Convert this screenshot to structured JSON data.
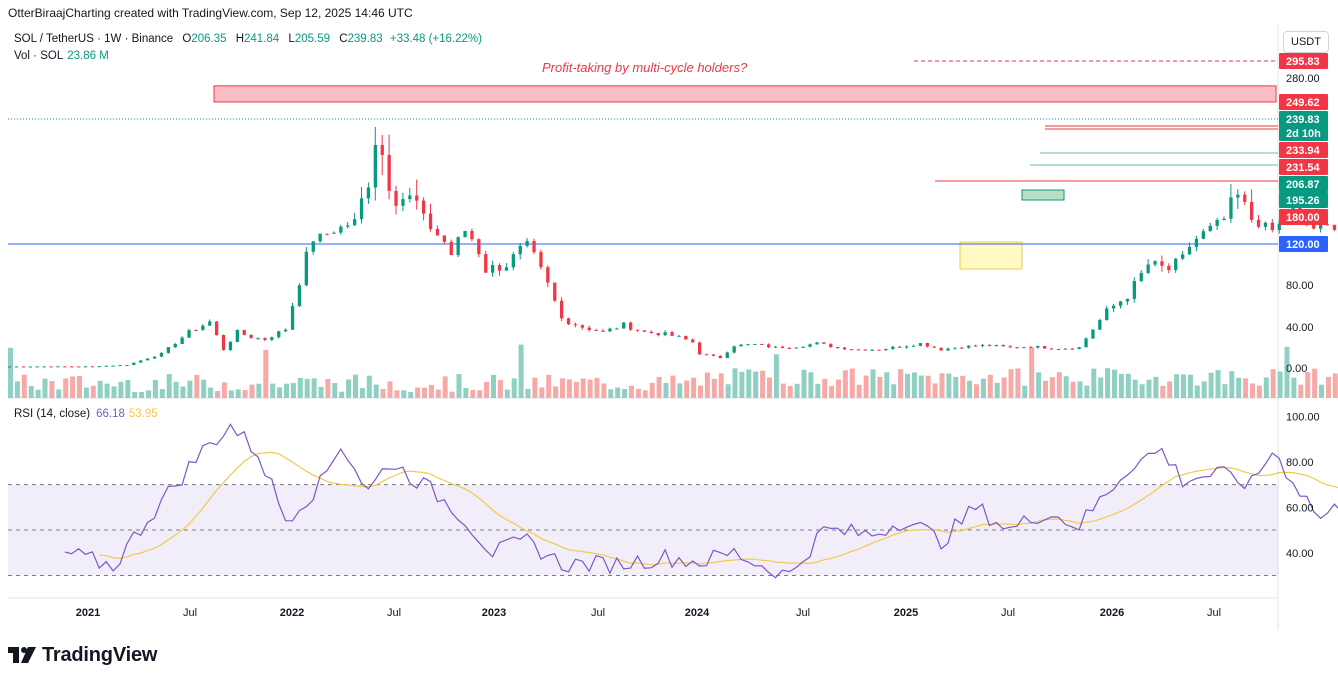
{
  "caption": "OtterBiraajCharting created with TradingView.com, Sep 12, 2025 14:46 UTC",
  "legend": {
    "symbol": "SOL / TetherUS · 1W · Binance",
    "o_label": "O",
    "o_value": "206.35",
    "h_label": "H",
    "h_value": "241.84",
    "l_label": "L",
    "l_value": "205.59",
    "c_label": "C",
    "c_value": "239.83",
    "change": "+33.48 (+16.22%)",
    "vol_label": "Vol · SOL",
    "vol_value": "23.86 M",
    "rsi_label": "RSI (14, close)",
    "rsi_value": "66.18",
    "rsi_ma_value": "53.95"
  },
  "annotation": "Profit-taking by multi-cycle holders?",
  "currency": "USDT",
  "brand": "TradingView",
  "colors": {
    "up": "#089981",
    "down": "#f23645",
    "rsi": "#7e57c2",
    "rsi_ma": "#f2c94c",
    "blue": "#2962ff"
  },
  "chart_data": [
    {
      "type": "candlestick",
      "title": "SOL / TetherUS · 1W · Binance",
      "ylim": [
        -10,
        310
      ],
      "y_ticks": [
        "280.00",
        "80.00",
        "40.00",
        "0.00"
      ],
      "x_ticks": [
        "2021",
        "Jul",
        "2022",
        "Jul",
        "2023",
        "Jul",
        "2024",
        "Jul",
        "2025",
        "Jul",
        "2026",
        "Jul"
      ],
      "price_tags": [
        {
          "label": "295.83",
          "kind": "dashed-red"
        },
        {
          "label": "249.62",
          "kind": "red"
        },
        {
          "label": "239.83",
          "kind": "green"
        },
        {
          "label": "2d 10h",
          "kind": "green"
        },
        {
          "label": "233.94",
          "kind": "red"
        },
        {
          "label": "231.54",
          "kind": "red"
        },
        {
          "label": "206.87",
          "kind": "green"
        },
        {
          "label": "195.26",
          "kind": "green"
        },
        {
          "label": "180.00",
          "kind": "red"
        },
        {
          "label": "120.00",
          "kind": "blue"
        }
      ],
      "zones": [
        {
          "name": "resistance-zone",
          "low": 249.62,
          "high": 270
        },
        {
          "name": "support-zone",
          "low": 195.26,
          "high": 206.87
        },
        {
          "name": "demand-box",
          "low": 95,
          "high": 120
        }
      ],
      "last": {
        "open": 206.35,
        "high": 241.84,
        "low": 205.59,
        "close": 239.83
      }
    },
    {
      "type": "line",
      "title": "RSI (14, close)",
      "ylim": [
        28,
        102
      ],
      "y_ticks": [
        "100.00",
        "80.00",
        "60.00",
        "40.00"
      ],
      "bands": [
        30,
        50,
        70
      ],
      "series": [
        {
          "name": "RSI",
          "last": 66.18
        },
        {
          "name": "RSI-MA",
          "last": 53.95
        }
      ]
    }
  ]
}
